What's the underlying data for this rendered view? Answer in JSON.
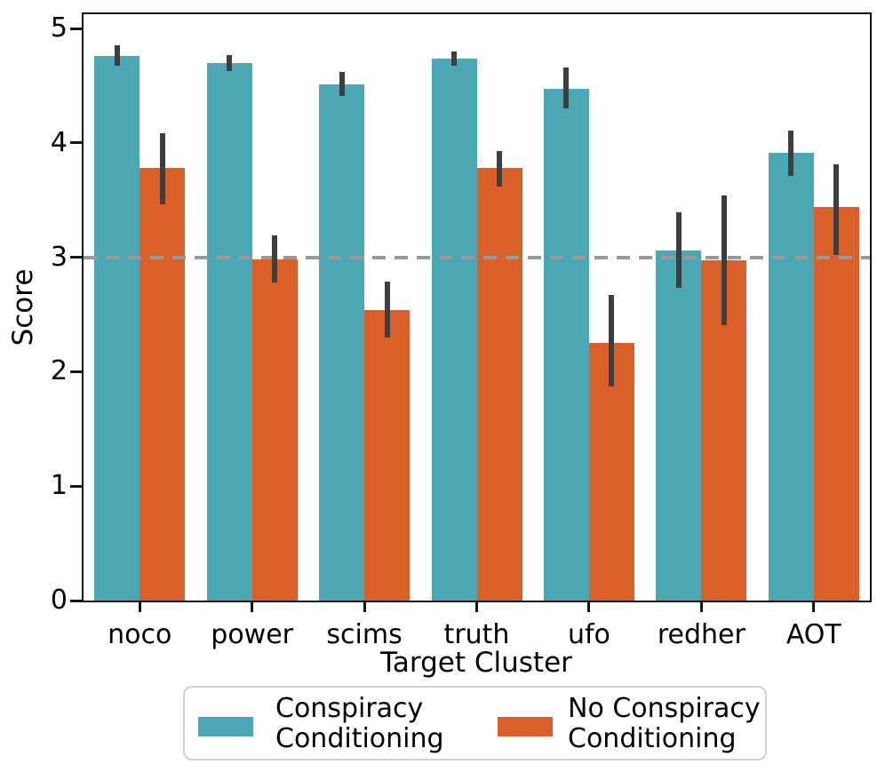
{
  "chart_data": {
    "type": "bar",
    "title": "",
    "xlabel": "Target Cluster",
    "ylabel": "Score",
    "categories": [
      "noco",
      "power",
      "scims",
      "truth",
      "ufo",
      "redher",
      "AOT"
    ],
    "series": [
      {
        "name": "Conspiracy Conditioning",
        "color": "#4BA7B3",
        "values": [
          4.76,
          4.7,
          4.51,
          4.74,
          4.47,
          3.06,
          3.91
        ],
        "ci_low": [
          4.67,
          4.63,
          4.41,
          4.67,
          4.3,
          2.73,
          3.71
        ],
        "ci_high": [
          4.85,
          4.77,
          4.62,
          4.8,
          4.66,
          3.39,
          4.11
        ]
      },
      {
        "name": "No Conspiracy Conditioning",
        "color": "#DA5F28",
        "values": [
          3.78,
          2.98,
          2.54,
          3.78,
          2.25,
          2.97,
          3.44
        ],
        "ci_low": [
          3.46,
          2.78,
          2.3,
          3.62,
          1.87,
          2.41,
          3.02
        ],
        "ci_high": [
          4.08,
          3.19,
          2.79,
          3.93,
          2.67,
          3.54,
          3.81
        ]
      }
    ],
    "ylim": [
      0,
      5
    ],
    "yticks": [
      0,
      1,
      2,
      3,
      4,
      5
    ],
    "reference_line": {
      "y": 3,
      "style": "dashed",
      "color": "#999999"
    },
    "errorbar_color": "#3E3E3E",
    "grid": false,
    "legend_position": "bottom"
  },
  "legend": {
    "items": [
      {
        "line1": "Conspiracy",
        "line2": "Conditioning"
      },
      {
        "line1": "No Conspiracy",
        "line2": "Conditioning"
      }
    ]
  }
}
